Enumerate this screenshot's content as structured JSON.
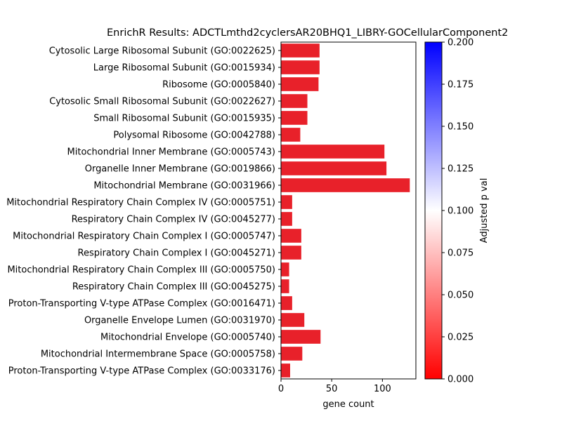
{
  "chart_data": {
    "type": "bar",
    "orientation": "horizontal",
    "title": "EnrichR Results: ADCTLmthd2cyclersAR20BHQ1_LIBRY-GOCellularComponent2",
    "xlabel": "gene count",
    "ylabel": "",
    "xlim": [
      0,
      133
    ],
    "x_ticks": [
      "0",
      "50",
      "100"
    ],
    "bar_color": "#e8212a",
    "categories": [
      "Cytosolic Large Ribosomal Subunit (GO:0022625)",
      "Large Ribosomal Subunit (GO:0015934)",
      "Ribosome (GO:0005840)",
      "Cytosolic Small Ribosomal Subunit (GO:0022627)",
      "Small Ribosomal Subunit (GO:0015935)",
      "Polysomal Ribosome (GO:0042788)",
      "Mitochondrial Inner Membrane (GO:0005743)",
      "Organelle Inner Membrane (GO:0019866)",
      "Mitochondrial Membrane (GO:0031966)",
      "Mitochondrial Respiratory Chain Complex IV (GO:0005751)",
      "Respiratory Chain Complex IV (GO:0045277)",
      "Mitochondrial Respiratory Chain Complex I (GO:0005747)",
      "Respiratory Chain Complex I (GO:0045271)",
      "Mitochondrial Respiratory Chain Complex III (GO:0005750)",
      "Respiratory Chain Complex III (GO:0045275)",
      "Proton-Transporting V-type ATPase Complex (GO:0016471)",
      "Organelle Envelope Lumen (GO:0031970)",
      "Mitochondrial Envelope (GO:0005740)",
      "Mitochondrial Intermembrane Space (GO:0005758)",
      "Proton-Transporting V-type ATPase Complex (GO:0033176)"
    ],
    "values": [
      38,
      38,
      37,
      26,
      26,
      19,
      102,
      104,
      127,
      11,
      11,
      20,
      20,
      8,
      8,
      11,
      23,
      39,
      21,
      9
    ],
    "colorbar": {
      "label": "Adjusted p val",
      "range": [
        0,
        0.2
      ],
      "ticks": [
        "0.000",
        "0.025",
        "0.050",
        "0.075",
        "0.100",
        "0.125",
        "0.150",
        "0.175",
        "0.200"
      ],
      "colormap": [
        "#ff0000",
        "#ffffff",
        "#0000ff"
      ]
    },
    "grid": false,
    "legend": "none"
  }
}
